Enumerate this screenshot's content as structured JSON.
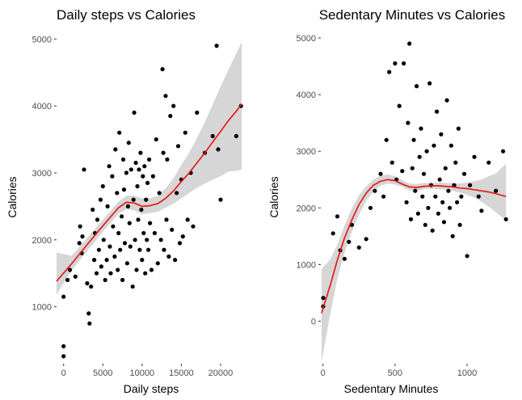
{
  "chart_data": [
    {
      "type": "scatter",
      "title": "Daily steps vs Calories",
      "xlabel": "Daily steps",
      "ylabel": "Calories",
      "xlim": [
        -900,
        23300
      ],
      "ylim": [
        150,
        5100
      ],
      "xticks": [
        0,
        5000,
        10000,
        15000,
        20000
      ],
      "xtick_labels": [
        "0",
        "5000",
        "10000",
        "15000",
        "20000"
      ],
      "yticks": [
        1000,
        2000,
        3000,
        4000,
        5000
      ],
      "ytick_labels": [
        "1000",
        "2000",
        "3000",
        "4000",
        "5000"
      ],
      "grid": false,
      "point_color": "#000000",
      "trend_color": "#e8191d",
      "band_color": "#d6d6d6",
      "points": [
        [
          0,
          260
        ],
        [
          0,
          410
        ],
        [
          0,
          1150
        ],
        [
          500,
          1400
        ],
        [
          800,
          1550
        ],
        [
          1500,
          1450
        ],
        [
          2000,
          1950
        ],
        [
          2100,
          2200
        ],
        [
          2300,
          1800
        ],
        [
          2400,
          2050
        ],
        [
          2600,
          3050
        ],
        [
          3000,
          1350
        ],
        [
          3200,
          900
        ],
        [
          3300,
          750
        ],
        [
          3500,
          1300
        ],
        [
          3700,
          2450
        ],
        [
          3900,
          1700
        ],
        [
          4000,
          2100
        ],
        [
          4200,
          1500
        ],
        [
          4300,
          2300
        ],
        [
          4500,
          1850
        ],
        [
          4700,
          2600
        ],
        [
          4800,
          1600
        ],
        [
          5000,
          2800
        ],
        [
          5100,
          2000
        ],
        [
          5300,
          1400
        ],
        [
          5500,
          1700
        ],
        [
          5600,
          2500
        ],
        [
          5800,
          3100
        ],
        [
          5900,
          1900
        ],
        [
          6000,
          1500
        ],
        [
          6200,
          2950
        ],
        [
          6300,
          2200
        ],
        [
          6500,
          1750
        ],
        [
          6600,
          3350
        ],
        [
          6800,
          2700
        ],
        [
          6900,
          1550
        ],
        [
          7000,
          2100
        ],
        [
          7100,
          3600
        ],
        [
          7200,
          1850
        ],
        [
          7400,
          2350
        ],
        [
          7500,
          1400
        ],
        [
          7600,
          3200
        ],
        [
          7700,
          2750
        ],
        [
          7800,
          1950
        ],
        [
          8000,
          3000
        ],
        [
          8100,
          1650
        ],
        [
          8200,
          2500
        ],
        [
          8300,
          3450
        ],
        [
          8400,
          2250
        ],
        [
          8500,
          1900
        ],
        [
          8600,
          3050
        ],
        [
          8800,
          1300
        ],
        [
          8900,
          2600
        ],
        [
          9000,
          3900
        ],
        [
          9100,
          2000
        ],
        [
          9200,
          3150
        ],
        [
          9300,
          1550
        ],
        [
          9400,
          2800
        ],
        [
          9500,
          2300
        ],
        [
          9600,
          3050
        ],
        [
          9700,
          1850
        ],
        [
          9800,
          3300
        ],
        [
          9900,
          2450
        ],
        [
          10000,
          1700
        ],
        [
          10100,
          2950
        ],
        [
          10200,
          2100
        ],
        [
          10300,
          3100
        ],
        [
          10400,
          1500
        ],
        [
          10500,
          2600
        ],
        [
          10600,
          2000
        ],
        [
          10700,
          2850
        ],
        [
          10800,
          1850
        ],
        [
          10900,
          3200
        ],
        [
          11000,
          2250
        ],
        [
          11200,
          1550
        ],
        [
          11400,
          2950
        ],
        [
          11600,
          2100
        ],
        [
          11800,
          3500
        ],
        [
          12000,
          1650
        ],
        [
          12200,
          2700
        ],
        [
          12400,
          2000
        ],
        [
          12600,
          4550
        ],
        [
          12700,
          3300
        ],
        [
          12800,
          1850
        ],
        [
          13000,
          4150
        ],
        [
          13100,
          2300
        ],
        [
          13200,
          3200
        ],
        [
          13400,
          1750
        ],
        [
          13600,
          3850
        ],
        [
          13800,
          2150
        ],
        [
          14000,
          4000
        ],
        [
          14200,
          1700
        ],
        [
          14400,
          2700
        ],
        [
          14600,
          3400
        ],
        [
          14800,
          1950
        ],
        [
          15000,
          2900
        ],
        [
          15200,
          2050
        ],
        [
          15500,
          3600
        ],
        [
          15800,
          2300
        ],
        [
          16200,
          3000
        ],
        [
          16500,
          2200
        ],
        [
          17000,
          3900
        ],
        [
          18000,
          3300
        ],
        [
          19000,
          3550
        ],
        [
          19500,
          4900
        ],
        [
          19700,
          3350
        ],
        [
          20000,
          2600
        ],
        [
          22000,
          3550
        ],
        [
          22600,
          4000
        ]
      ],
      "trend": [
        [
          -900,
          1380
        ],
        [
          1000,
          1640
        ],
        [
          3000,
          1930
        ],
        [
          5000,
          2210
        ],
        [
          7000,
          2480
        ],
        [
          8000,
          2560
        ],
        [
          9000,
          2550
        ],
        [
          10000,
          2500
        ],
        [
          11000,
          2510
        ],
        [
          12000,
          2540
        ],
        [
          13000,
          2620
        ],
        [
          14000,
          2730
        ],
        [
          15000,
          2870
        ],
        [
          16000,
          3000
        ],
        [
          17000,
          3150
        ],
        [
          18000,
          3300
        ],
        [
          19000,
          3460
        ],
        [
          20000,
          3620
        ],
        [
          21000,
          3780
        ],
        [
          22000,
          3920
        ],
        [
          22700,
          4030
        ]
      ],
      "band": [
        [
          -900,
          1180,
          1810
        ],
        [
          1000,
          1540,
          1760
        ],
        [
          3000,
          1830,
          2030
        ],
        [
          5000,
          2120,
          2300
        ],
        [
          7000,
          2390,
          2570
        ],
        [
          8000,
          2460,
          2660
        ],
        [
          9000,
          2440,
          2660
        ],
        [
          10000,
          2380,
          2620
        ],
        [
          11000,
          2400,
          2620
        ],
        [
          12000,
          2420,
          2660
        ],
        [
          13000,
          2480,
          2770
        ],
        [
          14000,
          2540,
          2920
        ],
        [
          15000,
          2620,
          3120
        ],
        [
          16000,
          2700,
          3300
        ],
        [
          17000,
          2780,
          3520
        ],
        [
          18000,
          2840,
          3760
        ],
        [
          19000,
          2900,
          4020
        ],
        [
          20000,
          2950,
          4290
        ],
        [
          21000,
          3020,
          4540
        ],
        [
          22000,
          3030,
          4790
        ],
        [
          22700,
          3050,
          4960
        ]
      ]
    },
    {
      "type": "scatter",
      "title": "Sedentary Minutes vs Calories",
      "xlabel": "Sedentary Minutes",
      "ylabel": "Calories",
      "xlim": [
        -15,
        1280
      ],
      "ylim": [
        -750,
        5100
      ],
      "xticks": [
        0,
        500,
        1000
      ],
      "xtick_labels": [
        "0",
        "500",
        "1000"
      ],
      "yticks": [
        0,
        1000,
        2000,
        3000,
        4000,
        5000
      ],
      "ytick_labels": [
        "0",
        "1000",
        "2000",
        "3000",
        "4000",
        "5000"
      ],
      "grid": false,
      "point_color": "#000000",
      "trend_color": "#e8191d",
      "band_color": "#d6d6d6",
      "points": [
        [
          2,
          260
        ],
        [
          2,
          410
        ],
        [
          70,
          1550
        ],
        [
          100,
          1850
        ],
        [
          120,
          1250
        ],
        [
          150,
          1100
        ],
        [
          180,
          1400
        ],
        [
          200,
          1700
        ],
        [
          250,
          1300
        ],
        [
          300,
          1450
        ],
        [
          330,
          2000
        ],
        [
          360,
          2300
        ],
        [
          400,
          2600
        ],
        [
          420,
          2200
        ],
        [
          440,
          3200
        ],
        [
          460,
          4400
        ],
        [
          480,
          2800
        ],
        [
          500,
          4550
        ],
        [
          510,
          2500
        ],
        [
          530,
          3800
        ],
        [
          550,
          2650
        ],
        [
          560,
          4550
        ],
        [
          580,
          2100
        ],
        [
          590,
          3500
        ],
        [
          600,
          4900
        ],
        [
          610,
          1800
        ],
        [
          620,
          2700
        ],
        [
          630,
          3200
        ],
        [
          640,
          2300
        ],
        [
          650,
          4150
        ],
        [
          660,
          1900
        ],
        [
          670,
          2900
        ],
        [
          680,
          3400
        ],
        [
          690,
          2200
        ],
        [
          700,
          2600
        ],
        [
          710,
          1700
        ],
        [
          720,
          3000
        ],
        [
          730,
          2000
        ],
        [
          740,
          4200
        ],
        [
          750,
          2400
        ],
        [
          760,
          1600
        ],
        [
          770,
          3100
        ],
        [
          780,
          2200
        ],
        [
          790,
          3700
        ],
        [
          800,
          1900
        ],
        [
          810,
          2500
        ],
        [
          820,
          3300
        ],
        [
          830,
          2100
        ],
        [
          840,
          1750
        ],
        [
          850,
          2700
        ],
        [
          860,
          3900
        ],
        [
          870,
          2300
        ],
        [
          880,
          2000
        ],
        [
          890,
          3100
        ],
        [
          900,
          1500
        ],
        [
          910,
          2400
        ],
        [
          920,
          2800
        ],
        [
          930,
          2100
        ],
        [
          940,
          3400
        ],
        [
          950,
          1700
        ],
        [
          960,
          2200
        ],
        [
          980,
          2600
        ],
        [
          1000,
          1150
        ],
        [
          1020,
          2400
        ],
        [
          1050,
          2900
        ],
        [
          1080,
          2200
        ],
        [
          1100,
          1950
        ],
        [
          1150,
          2800
        ],
        [
          1200,
          2300
        ],
        [
          1250,
          3000
        ],
        [
          1270,
          1800
        ]
      ],
      "trend": [
        [
          -10,
          140
        ],
        [
          50,
          630
        ],
        [
          100,
          1080
        ],
        [
          150,
          1470
        ],
        [
          200,
          1790
        ],
        [
          250,
          2060
        ],
        [
          300,
          2260
        ],
        [
          350,
          2400
        ],
        [
          400,
          2470
        ],
        [
          450,
          2500
        ],
        [
          500,
          2480
        ],
        [
          550,
          2420
        ],
        [
          600,
          2370
        ],
        [
          650,
          2360
        ],
        [
          700,
          2380
        ],
        [
          750,
          2390
        ],
        [
          800,
          2390
        ],
        [
          850,
          2380
        ],
        [
          900,
          2370
        ],
        [
          950,
          2350
        ],
        [
          1000,
          2340
        ],
        [
          1050,
          2320
        ],
        [
          1100,
          2300
        ],
        [
          1150,
          2280
        ],
        [
          1200,
          2250
        ],
        [
          1270,
          2200
        ]
      ],
      "band": [
        [
          -10,
          -720,
          920
        ],
        [
          50,
          120,
          1090
        ],
        [
          100,
          750,
          1350
        ],
        [
          150,
          1210,
          1690
        ],
        [
          200,
          1580,
          1990
        ],
        [
          250,
          1880,
          2220
        ],
        [
          300,
          2120,
          2380
        ],
        [
          350,
          2290,
          2500
        ],
        [
          400,
          2390,
          2570
        ],
        [
          450,
          2430,
          2590
        ],
        [
          500,
          2410,
          2560
        ],
        [
          550,
          2370,
          2490
        ],
        [
          600,
          2310,
          2430
        ],
        [
          650,
          2300,
          2420
        ],
        [
          700,
          2330,
          2440
        ],
        [
          750,
          2340,
          2450
        ],
        [
          800,
          2330,
          2450
        ],
        [
          850,
          2320,
          2440
        ],
        [
          900,
          2300,
          2440
        ],
        [
          950,
          2270,
          2430
        ],
        [
          1000,
          2230,
          2450
        ],
        [
          1050,
          2180,
          2470
        ],
        [
          1100,
          2110,
          2500
        ],
        [
          1150,
          2020,
          2560
        ],
        [
          1200,
          1920,
          2610
        ],
        [
          1270,
          1780,
          2780
        ]
      ]
    }
  ]
}
